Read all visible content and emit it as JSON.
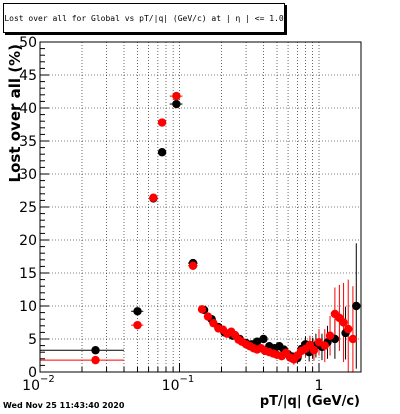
{
  "page": {
    "title": "Lost over all for Global vs pT/|q| (GeV/c) at | η | <= 1.0",
    "timestamp": "Wed Nov 25 11:43:40 2020"
  },
  "chart_data": {
    "type": "scatter",
    "title": "Lost over all for Global vs pT/|q| (GeV/c) at | η | <= 1.0",
    "xlabel": "pT/|q| (GeV/c)",
    "ylabel": "Lost over all (%)",
    "x_scale": "log",
    "xlim": [
      0.01,
      2.0
    ],
    "ylim": [
      0,
      50
    ],
    "grid": true,
    "x_tick_labels": [
      {
        "value": 0.01,
        "label": "10",
        "sup": "−2"
      },
      {
        "value": 0.1,
        "label": "10",
        "sup": "−1"
      },
      {
        "value": 1,
        "label": "1",
        "sup": ""
      }
    ],
    "y_ticks": [
      0,
      5,
      10,
      15,
      20,
      25,
      30,
      35,
      40,
      45,
      50
    ],
    "colors": {
      "series_black": "#000000",
      "series_red": "#ff0000"
    },
    "series": [
      {
        "color": "#000000",
        "points": [
          {
            "x": 0.025,
            "y": 3.3,
            "xerr": [
              0.01,
              0.04
            ],
            "yerr": 0.3
          },
          {
            "x": 0.05,
            "y": 9.2,
            "xerr": [
              0.045,
              0.055
            ],
            "yerr": 0.4
          },
          {
            "x": 0.065,
            "y": 26.3,
            "xerr": [
              0.0625,
              0.0675
            ],
            "yerr": 0.6
          },
          {
            "x": 0.075,
            "y": 33.3,
            "xerr": [
              0.0725,
              0.0775
            ],
            "yerr": 0.6
          },
          {
            "x": 0.095,
            "y": 40.6,
            "xerr": [
              0.085,
              0.105
            ],
            "yerr": 0.6
          },
          {
            "x": 0.125,
            "y": 16.5,
            "xerr": [
              0.115,
              0.135
            ],
            "yerr": 0.4
          },
          {
            "x": 0.15,
            "y": 9.4,
            "yerr": 0.3
          },
          {
            "x": 0.17,
            "y": 8.0,
            "yerr": 0.3
          },
          {
            "x": 0.19,
            "y": 6.8,
            "yerr": 0.3
          },
          {
            "x": 0.21,
            "y": 6.0,
            "yerr": 0.3
          },
          {
            "x": 0.24,
            "y": 5.5,
            "yerr": 0.3
          },
          {
            "x": 0.27,
            "y": 5.0,
            "yerr": 0.3
          },
          {
            "x": 0.3,
            "y": 4.4,
            "yerr": 0.4
          },
          {
            "x": 0.33,
            "y": 4.2,
            "yerr": 0.4
          },
          {
            "x": 0.36,
            "y": 4.6,
            "yerr": 0.4
          },
          {
            "x": 0.4,
            "y": 5.0,
            "yerr": 0.4
          },
          {
            "x": 0.44,
            "y": 3.9,
            "yerr": 0.4
          },
          {
            "x": 0.48,
            "y": 3.6,
            "yerr": 0.5
          },
          {
            "x": 0.52,
            "y": 3.9,
            "yerr": 0.5
          },
          {
            "x": 0.56,
            "y": 3.4,
            "yerr": 0.5
          },
          {
            "x": 0.6,
            "y": 2.7,
            "yerr": 0.6
          },
          {
            "x": 0.65,
            "y": 2.3,
            "yerr": 0.7
          },
          {
            "x": 0.7,
            "y": 2.1,
            "yerr": 0.8
          },
          {
            "x": 0.75,
            "y": 3.5,
            "yerr": 1.0
          },
          {
            "x": 0.8,
            "y": 4.2,
            "yerr": 1.2
          },
          {
            "x": 0.85,
            "y": 3.0,
            "yerr": 1.4
          },
          {
            "x": 0.9,
            "y": 3.6,
            "yerr": 1.6
          },
          {
            "x": 0.95,
            "y": 4.0,
            "yerr": 1.8
          },
          {
            "x": 1.05,
            "y": 3.8,
            "yerr": 2.0
          },
          {
            "x": 1.15,
            "y": 4.5,
            "yerr": 2.5
          },
          {
            "x": 1.3,
            "y": 5.0,
            "yerr": 3.0
          },
          {
            "x": 1.55,
            "y": 5.9,
            "yerr": 4.0
          },
          {
            "x": 1.85,
            "y": 10.0,
            "yerr": 9.5
          }
        ]
      },
      {
        "color": "#ff0000",
        "points": [
          {
            "x": 0.025,
            "y": 1.8,
            "xerr": [
              0.01,
              0.04
            ],
            "yerr": 0.3
          },
          {
            "x": 0.05,
            "y": 7.1,
            "xerr": [
              0.045,
              0.055
            ],
            "yerr": 0.4
          },
          {
            "x": 0.065,
            "y": 26.4,
            "xerr": [
              0.0625,
              0.0675
            ],
            "yerr": 0.6
          },
          {
            "x": 0.075,
            "y": 37.8,
            "xerr": [
              0.0725,
              0.0775
            ],
            "yerr": 0.6
          },
          {
            "x": 0.095,
            "y": 41.8,
            "xerr": [
              0.085,
              0.105
            ],
            "yerr": 0.6
          },
          {
            "x": 0.125,
            "y": 16.1,
            "xerr": [
              0.115,
              0.135
            ],
            "yerr": 0.4
          },
          {
            "x": 0.145,
            "y": 9.5,
            "yerr": 0.3
          },
          {
            "x": 0.16,
            "y": 8.4,
            "yerr": 0.3
          },
          {
            "x": 0.175,
            "y": 7.4,
            "yerr": 0.3
          },
          {
            "x": 0.19,
            "y": 6.6,
            "yerr": 0.3
          },
          {
            "x": 0.205,
            "y": 6.4,
            "yerr": 0.3
          },
          {
            "x": 0.22,
            "y": 5.8,
            "yerr": 0.3
          },
          {
            "x": 0.235,
            "y": 6.1,
            "yerr": 0.3
          },
          {
            "x": 0.25,
            "y": 5.6,
            "yerr": 0.3
          },
          {
            "x": 0.265,
            "y": 4.9,
            "yerr": 0.3
          },
          {
            "x": 0.28,
            "y": 4.6,
            "yerr": 0.3
          },
          {
            "x": 0.3,
            "y": 4.2,
            "yerr": 0.3
          },
          {
            "x": 0.32,
            "y": 3.9,
            "yerr": 0.4
          },
          {
            "x": 0.34,
            "y": 3.6,
            "yerr": 0.4
          },
          {
            "x": 0.36,
            "y": 3.4,
            "yerr": 0.4
          },
          {
            "x": 0.385,
            "y": 3.6,
            "yerr": 0.4
          },
          {
            "x": 0.41,
            "y": 3.2,
            "yerr": 0.4
          },
          {
            "x": 0.44,
            "y": 3.0,
            "yerr": 0.4
          },
          {
            "x": 0.47,
            "y": 2.8,
            "yerr": 0.5
          },
          {
            "x": 0.5,
            "y": 2.6,
            "yerr": 0.5
          },
          {
            "x": 0.54,
            "y": 2.4,
            "yerr": 0.5
          },
          {
            "x": 0.58,
            "y": 2.9,
            "yerr": 0.6
          },
          {
            "x": 0.62,
            "y": 2.2,
            "yerr": 0.7
          },
          {
            "x": 0.66,
            "y": 1.9,
            "yerr": 0.8
          },
          {
            "x": 0.7,
            "y": 2.5,
            "yerr": 0.9
          },
          {
            "x": 0.75,
            "y": 3.2,
            "yerr": 1.0
          },
          {
            "x": 0.8,
            "y": 3.5,
            "yerr": 1.2
          },
          {
            "x": 0.86,
            "y": 4.1,
            "yerr": 1.4
          },
          {
            "x": 0.92,
            "y": 3.3,
            "yerr": 1.6
          },
          {
            "x": 1.0,
            "y": 4.5,
            "yerr": 2.0
          },
          {
            "x": 1.1,
            "y": 4.0,
            "yerr": 2.5
          },
          {
            "x": 1.2,
            "y": 5.5,
            "yerr": 3.0
          },
          {
            "x": 1.3,
            "y": 8.8,
            "yerr": 4.0
          },
          {
            "x": 1.4,
            "y": 8.2,
            "yerr": 5.0
          },
          {
            "x": 1.5,
            "y": 7.5,
            "yerr": 6.0
          },
          {
            "x": 1.62,
            "y": 6.5,
            "yerr": 7.5
          },
          {
            "x": 1.75,
            "y": 5.0,
            "yerr": 8.0
          }
        ]
      }
    ]
  }
}
